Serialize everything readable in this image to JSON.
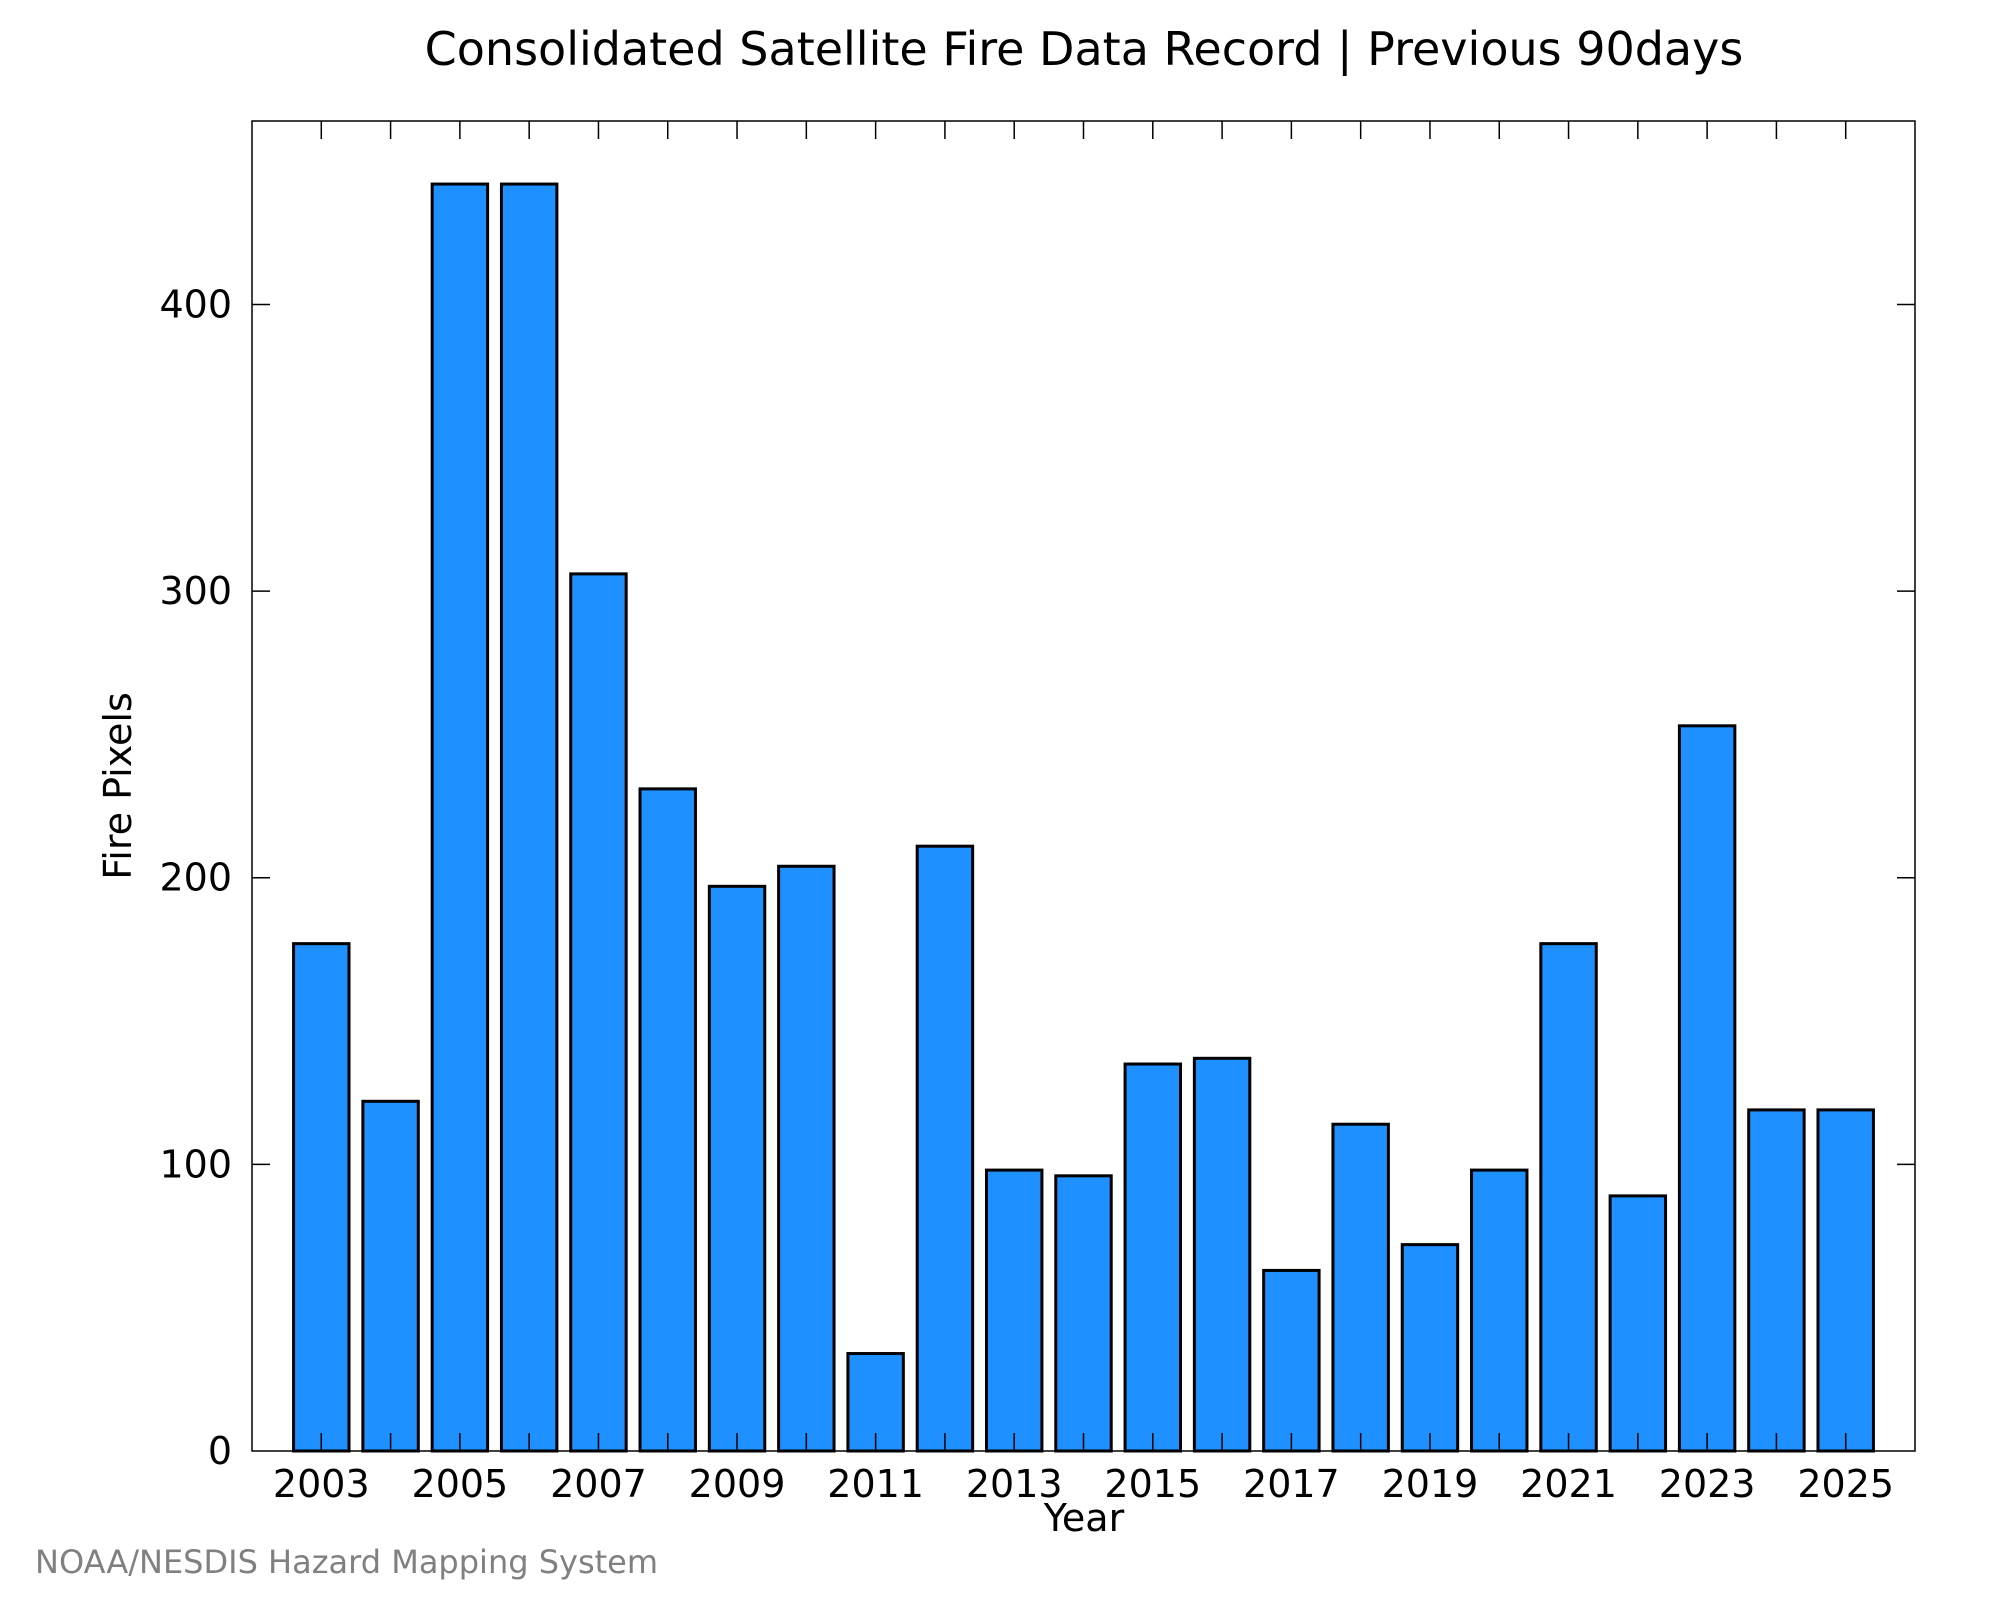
{
  "chart_data": {
    "type": "bar",
    "title": "Consolidated Satellite Fire Data Record | Previous 90days",
    "xlabel": "Year",
    "ylabel": "Fire Pixels",
    "categories": [
      "2003",
      "2004",
      "2005",
      "2006",
      "2007",
      "2008",
      "2009",
      "2010",
      "2011",
      "2012",
      "2013",
      "2014",
      "2015",
      "2016",
      "2017",
      "2018",
      "2019",
      "2020",
      "2021",
      "2022",
      "2023",
      "2024",
      "2025"
    ],
    "values": [
      177,
      122,
      442,
      442,
      306,
      231,
      197,
      204,
      34,
      211,
      98,
      96,
      135,
      137,
      63,
      114,
      72,
      98,
      177,
      89,
      253,
      119,
      119
    ],
    "x_tick_labels": [
      "2003",
      "2005",
      "2007",
      "2009",
      "2011",
      "2013",
      "2015",
      "2017",
      "2019",
      "2021",
      "2023",
      "2025"
    ],
    "y_ticks": [
      0,
      100,
      200,
      300,
      400
    ],
    "ylim": [
      0,
      464
    ],
    "bar_color": "#1e90ff",
    "bar_edge_color": "#000000",
    "grid": false,
    "legend": "none"
  },
  "credit": "NOAA/NESDIS Hazard Mapping System"
}
